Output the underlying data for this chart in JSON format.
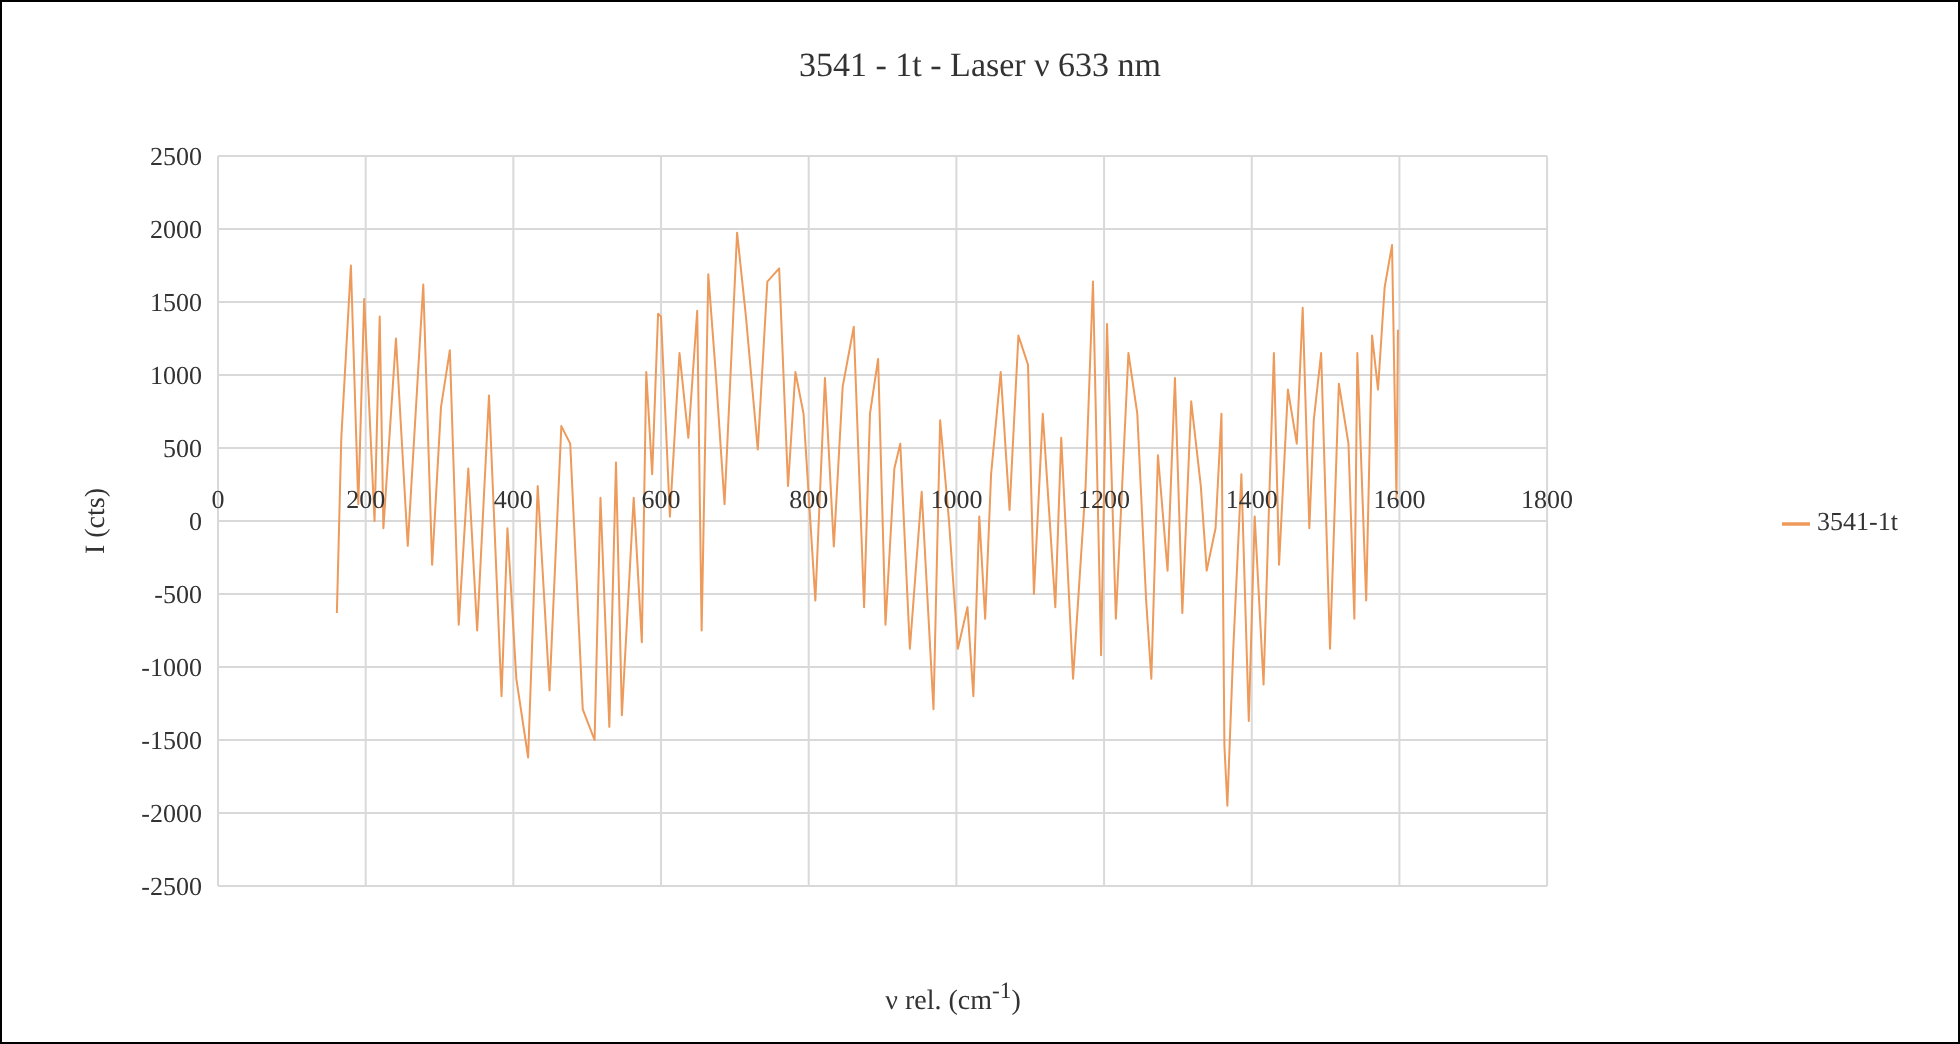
{
  "chart_data": {
    "type": "line",
    "title": "3541 - 1t - Laser ν 633 nm",
    "xlabel": "ν rel. (cm$^{-1}$)",
    "ylabel": "I (cts)",
    "xlim": [
      0,
      1800
    ],
    "xticks": [
      0,
      200,
      400,
      600,
      800,
      1000,
      1200,
      1400,
      1600,
      1800
    ],
    "ylim": [
      -2500,
      2500
    ],
    "yticks": [
      -2500,
      -2000,
      -1500,
      -1000,
      -500,
      0,
      500,
      1000,
      1500,
      2000,
      2500
    ],
    "grid": true,
    "legend": "right",
    "marker": "none",
    "line_style": "solid",
    "series": [
      {
        "name": "3541-1t",
        "color": "#ed9a5a",
        "x": [
          161,
          167,
          180,
          190,
          198,
          212,
          219,
          224,
          241,
          257,
          278,
          290,
          302,
          314,
          326,
          339,
          351,
          367,
          384,
          392,
          404,
          420,
          433,
          449,
          465,
          477,
          494,
          510,
          518,
          530,
          539,
          547,
          563,
          574,
          580,
          588,
          596,
          600,
          612,
          625,
          637,
          649,
          655,
          664,
          674,
          686,
          703,
          715,
          731,
          744,
          760,
          772,
          782,
          793,
          809,
          822,
          834,
          846,
          861,
          875,
          883,
          894,
          904,
          916,
          924,
          937,
          953,
          969,
          978,
          990,
          1002,
          1015,
          1023,
          1031,
          1039,
          1047,
          1060,
          1072,
          1084,
          1097,
          1105,
          1117,
          1134,
          1142,
          1158,
          1175,
          1185,
          1196,
          1204,
          1216,
          1233,
          1245,
          1257,
          1264,
          1273,
          1286,
          1296,
          1306,
          1318,
          1331,
          1339,
          1351,
          1359,
          1363,
          1367,
          1375,
          1386,
          1396,
          1404,
          1416,
          1424,
          1430,
          1437,
          1449,
          1461,
          1469,
          1478,
          1484,
          1494,
          1506,
          1518,
          1531,
          1539,
          1543,
          1555,
          1563,
          1571,
          1580,
          1590,
          1596,
          1598
        ],
        "values": [
          -630,
          570,
          1750,
          115,
          1520,
          0,
          1400,
          -50,
          1250,
          -170,
          1620,
          -300,
          780,
          1170,
          -710,
          360,
          -750,
          860,
          -1200,
          -50,
          -1080,
          -1620,
          240,
          -1160,
          650,
          530,
          -1290,
          -1500,
          160,
          -1410,
          400,
          -1330,
          160,
          -830,
          1020,
          320,
          1420,
          1400,
          30,
          1150,
          570,
          1440,
          -750,
          1690,
          1020,
          115,
          1975,
          1400,
          490,
          1640,
          1730,
          240,
          1020,
          735,
          -545,
          980,
          -175,
          920,
          1330,
          -590,
          735,
          1110,
          -710,
          360,
          530,
          -875,
          200,
          -1290,
          690,
          0,
          -875,
          -590,
          -1200,
          30,
          -670,
          320,
          1020,
          75,
          1270,
          1070,
          -500,
          735,
          -590,
          570,
          -1080,
          240,
          1640,
          -920,
          1350,
          -670,
          1150,
          735,
          -545,
          -1080,
          450,
          -340,
          980,
          -630,
          820,
          240,
          -340,
          -50,
          735,
          -1540,
          -1950,
          -875,
          320,
          -1370,
          30,
          -1120,
          200,
          1150,
          -300,
          900,
          530,
          1460,
          -50,
          690,
          1150,
          -875,
          940,
          530,
          -670,
          1150,
          -545,
          1270,
          900,
          1600,
          1890,
          160,
          1310
        ]
      }
    ]
  }
}
